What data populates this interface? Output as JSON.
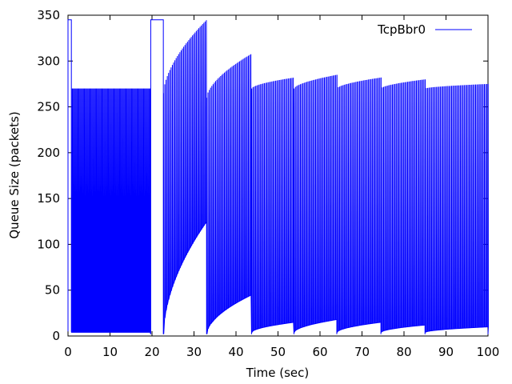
{
  "chart_data": {
    "type": "line",
    "title": "",
    "xlabel": "Time (sec)",
    "ylabel": "Queue Size (packets)",
    "xlim": [
      0,
      100
    ],
    "ylim": [
      0,
      350
    ],
    "xticks": [
      0,
      10,
      20,
      30,
      40,
      50,
      60,
      70,
      80,
      90,
      100
    ],
    "yticks": [
      0,
      50,
      100,
      150,
      200,
      250,
      300,
      350
    ],
    "grid": false,
    "legend_position": "top-right",
    "series": [
      {
        "name": "TcpBbr0",
        "color": "#0000ff",
        "phases": [
          {
            "t_start": 0.0,
            "t_end": 0.8,
            "kind": "flat",
            "level": 345
          },
          {
            "t_start": 0.8,
            "t_end": 19.7,
            "kind": "oscillate",
            "peak": 270,
            "trough": 4,
            "period": 0.22,
            "dips": [
              0.8,
              3.0,
              5.0,
              10.0,
              12.0,
              15.0,
              17.5
            ]
          },
          {
            "t_start": 19.7,
            "t_end": 22.7,
            "kind": "flat",
            "level": 345
          },
          {
            "t_start": 22.7,
            "t_end": 33.0,
            "kind": "oscillate_ramp",
            "peak_start": 265,
            "peak_end": 345,
            "trough_start": 2,
            "trough_end": 125,
            "period": 0.3
          },
          {
            "t_start": 33.0,
            "t_end": 43.7,
            "kind": "oscillate_ramp",
            "peak_start": 260,
            "peak_end": 308,
            "trough_start": 2,
            "trough_end": 45,
            "period": 0.3
          },
          {
            "t_start": 43.7,
            "t_end": 53.8,
            "kind": "oscillate_ramp",
            "peak_start": 270,
            "peak_end": 282,
            "trough_start": 4,
            "trough_end": 15,
            "period": 0.3
          },
          {
            "t_start": 53.8,
            "t_end": 64.0,
            "kind": "oscillate_ramp",
            "peak_start": 270,
            "peak_end": 285,
            "trough_start": 4,
            "trough_end": 18,
            "period": 0.3
          },
          {
            "t_start": 64.0,
            "t_end": 74.5,
            "kind": "oscillate_ramp",
            "peak_start": 270,
            "peak_end": 282,
            "trough_start": 4,
            "trough_end": 15,
            "period": 0.3
          },
          {
            "t_start": 74.5,
            "t_end": 85.0,
            "kind": "oscillate_ramp",
            "peak_start": 270,
            "peak_end": 280,
            "trough_start": 4,
            "trough_end": 12,
            "period": 0.3
          },
          {
            "t_start": 85.0,
            "t_end": 100.0,
            "kind": "oscillate_ramp",
            "peak_start": 270,
            "peak_end": 275,
            "trough_start": 4,
            "trough_end": 10,
            "period": 0.3
          }
        ]
      }
    ]
  }
}
